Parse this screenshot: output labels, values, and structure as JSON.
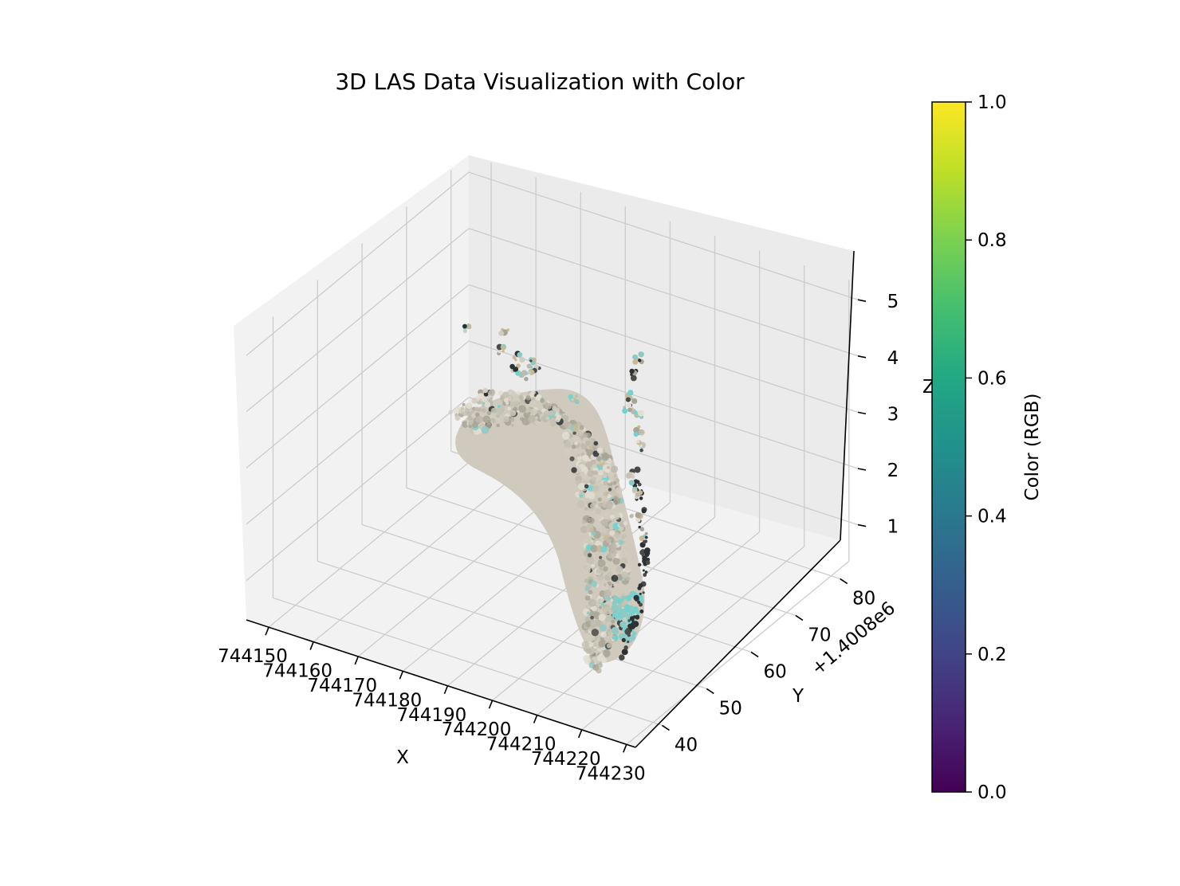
{
  "chart_data": {
    "type": "scatter",
    "title": "3D LAS Data Visualization with Color",
    "xlabel": "X",
    "ylabel": "Y",
    "zlabel": "Z",
    "x_ticks": [
      "744150",
      "744160",
      "744170",
      "744180",
      "744190",
      "744200",
      "744210",
      "744220",
      "744230"
    ],
    "y_ticks": [
      "40",
      "50",
      "60",
      "70",
      "80"
    ],
    "y_offset": "+1.4008e6",
    "z_ticks": [
      "1",
      "2",
      "3",
      "4",
      "5"
    ],
    "xlim": [
      744145,
      744232
    ],
    "ylim": [
      34,
      84
    ],
    "zlim": [
      0.3,
      5.3
    ],
    "grid": true,
    "projection": "3d",
    "colorbar": {
      "label": "Color (RGB)",
      "colormap": "viridis",
      "ticks": [
        "0.0",
        "0.2",
        "0.4",
        "0.6",
        "0.8",
        "1.0"
      ],
      "range": [
        0,
        1
      ]
    },
    "point_colors": [
      "#d2cdbf",
      "#c6c2b4",
      "#bdb9ab",
      "#e2ded2",
      "#a8a496",
      "#4a4a48",
      "#6fd3d0",
      "#8fc9c4",
      "#2c3234",
      "#c9b994"
    ]
  }
}
